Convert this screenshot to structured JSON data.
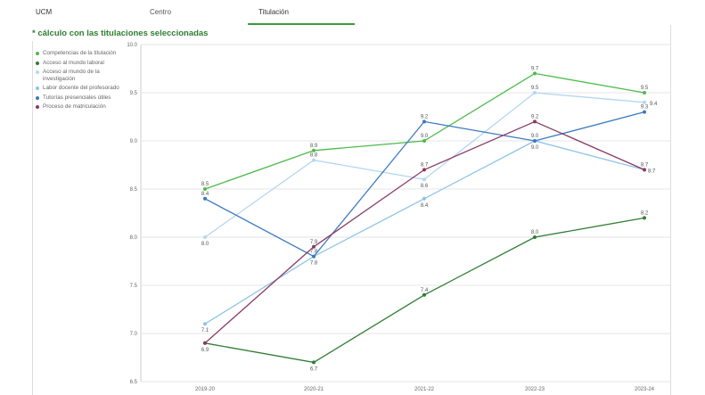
{
  "tabs": {
    "ucm": "UCM",
    "centro": "Centro",
    "titulacion": "Titulación"
  },
  "subtitle": "* cálculo con las titulaciones seleccionadas",
  "chart_data": {
    "type": "line",
    "title": "",
    "xlabel": "",
    "ylabel": "",
    "categories": [
      "2019-20",
      "2020-21",
      "2021-22",
      "2022-23",
      "2023-24"
    ],
    "ylim": [
      6.5,
      10.0
    ],
    "yticks": [
      "10.0",
      "9.5",
      "9.0",
      "8.5",
      "8.0",
      "7.5",
      "7.0",
      "6.5"
    ],
    "grid": true,
    "legend_position": "left",
    "series": [
      {
        "name": "Competencias de la titulación",
        "color": "#4cbb4c",
        "values": [
          8.5,
          8.9,
          9.0,
          9.7,
          9.5
        ],
        "labels": [
          "8.5",
          "8.9",
          "9.0",
          "9.7",
          "9.5"
        ]
      },
      {
        "name": "Acceso al mundo laboral",
        "color": "#2e7d32",
        "values": [
          6.9,
          6.7,
          7.4,
          8.0,
          8.2
        ],
        "labels": [
          "6.9",
          "6.7",
          "7.4",
          "8.0",
          "8.2"
        ]
      },
      {
        "name": "Acceso al mundo de la investigación",
        "color": "#b3d7f0",
        "values": [
          8.0,
          8.8,
          8.6,
          9.5,
          9.4
        ],
        "labels": [
          "8.0",
          "8.8",
          "8.6",
          "9.5",
          "9.4"
        ]
      },
      {
        "name": "Labor docente del profesorado",
        "color": "#8ec4e6",
        "values": [
          7.1,
          7.8,
          8.4,
          9.0,
          8.7
        ],
        "labels": [
          "7.1",
          "7.8",
          "8.4",
          "9.0",
          "8.7"
        ]
      },
      {
        "name": "Tutorías presenciales útiles",
        "color": "#3a78c0",
        "values": [
          8.4,
          7.8,
          9.2,
          9.0,
          9.3
        ],
        "labels": [
          "8.4",
          "7.8",
          "9.2",
          "9.0",
          "9.3"
        ]
      },
      {
        "name": "Proceso de matriculación",
        "color": "#8a3a62",
        "values": [
          6.9,
          7.9,
          8.7,
          9.2,
          8.7
        ],
        "labels": [
          "",
          "7.9",
          "8.7",
          "9.2",
          "8.7"
        ]
      }
    ]
  }
}
